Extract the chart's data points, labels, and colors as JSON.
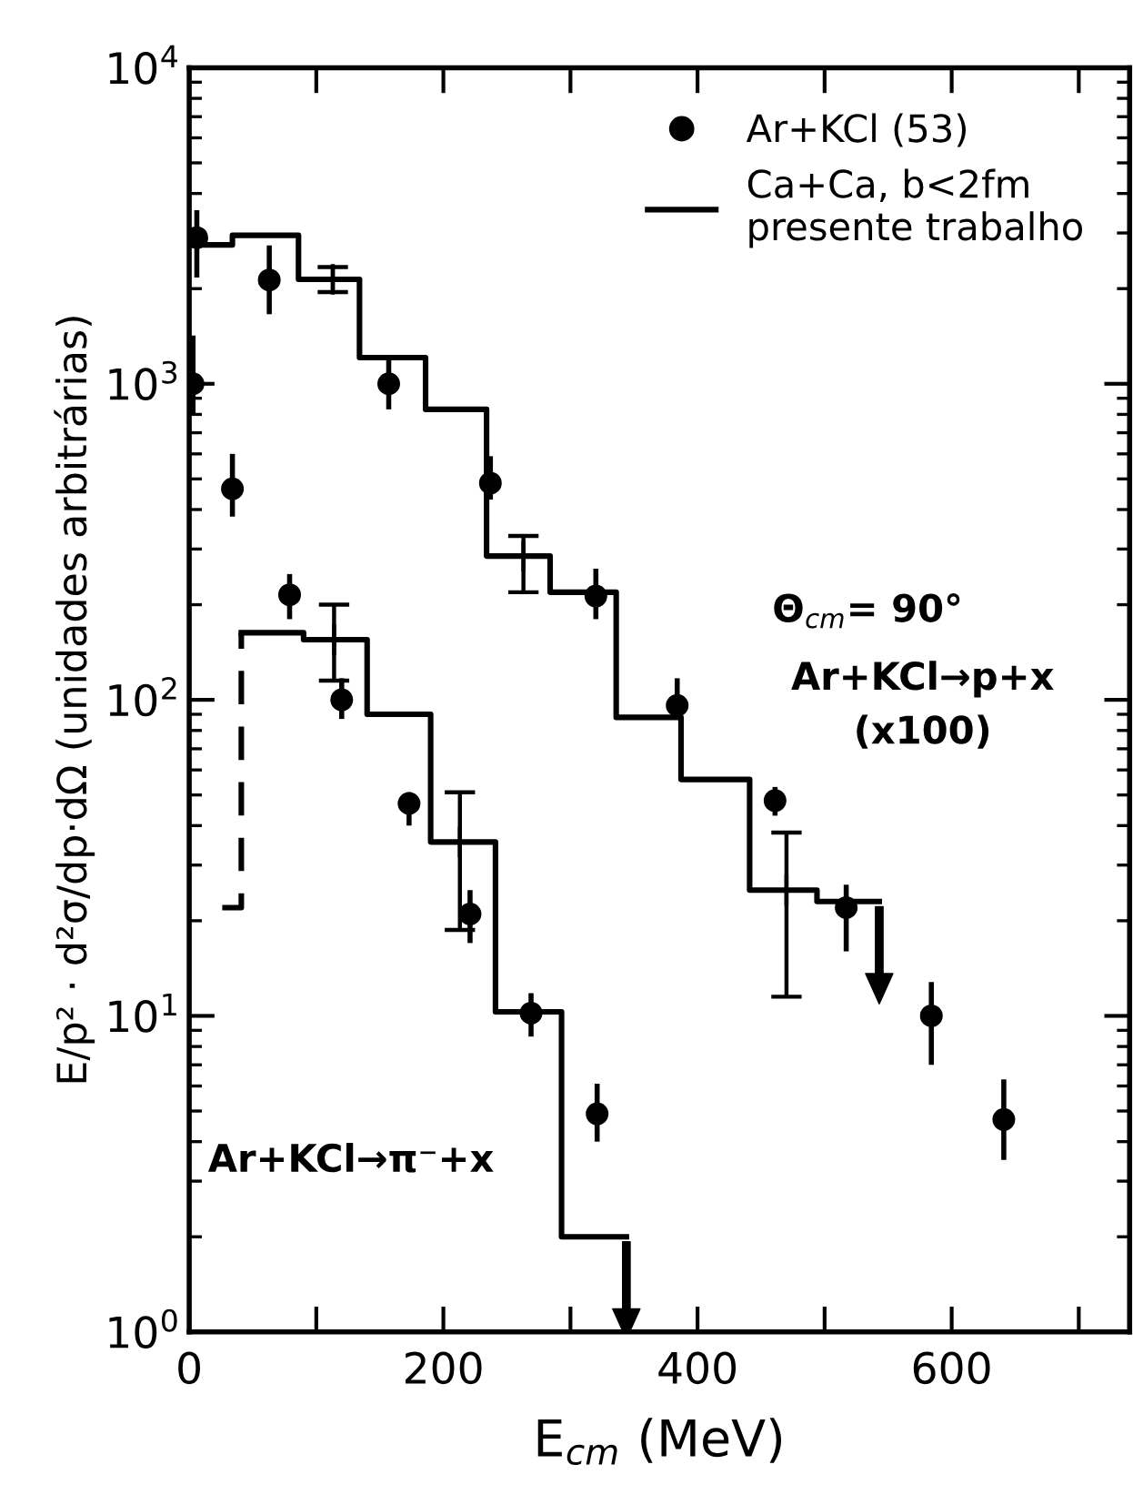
{
  "chart_data": {
    "type": "scatter",
    "xlabel": "E$_{cm}$ (MeV)",
    "ylabel": "E/p² · d²σ/dp·dΩ (unidades arbitrárias)",
    "log": "y",
    "xlim": [
      0,
      740
    ],
    "ylim": [
      1,
      10000
    ],
    "xticks": [
      0,
      {
        "value": 100,
        "label": null
      },
      200,
      {
        "value": 300,
        "label": null
      },
      400,
      {
        "value": 500,
        "label": null
      },
      600,
      {
        "value": 700,
        "label": null
      }
    ],
    "yticks": [
      {
        "value": 1,
        "label": "10$^{0}$"
      },
      {
        "value": 10,
        "label": "10$^{1}$"
      },
      {
        "value": 100,
        "label": "10$^{2}$"
      },
      {
        "value": 1000,
        "label": "10$^{3}$"
      },
      {
        "value": 10000,
        "label": "10$^{4}$"
      }
    ],
    "grid": false,
    "legend": "top right",
    "annotations": [
      "Θ$_{cm}$= 90°",
      "Ar+KCl→p+x\n(x100)",
      "Ar+KCl→π⁻+x"
    ],
    "series": [
      {
        "name": "Ar+KCl (53)",
        "type": "scatter",
        "color": "#000000",
        "marker": "circle",
        "x": [
          6,
          63,
          157,
          237,
          320,
          384,
          461,
          517,
          584,
          641,
          3,
          34,
          79,
          120,
          173,
          221,
          269,
          321
        ],
        "values": [
          2900,
          2130,
          1000,
          485,
          213,
          96,
          48,
          22,
          10,
          4.7,
          1000,
          465,
          215,
          100,
          47,
          21,
          10.2,
          4.9
        ],
        "errors": [
          [
            2170,
            3540
          ],
          [
            1660,
            2740
          ],
          [
            830,
            1200
          ],
          [
            430,
            590
          ],
          [
            180,
            260
          ],
          [
            87,
            117
          ],
          [
            43,
            53
          ],
          [
            16,
            26
          ],
          [
            7,
            12.8
          ],
          [
            3.5,
            6.3
          ],
          [
            800,
            1420
          ],
          [
            380,
            600
          ],
          [
            180,
            250
          ],
          [
            87,
            117
          ],
          [
            40,
            51
          ],
          [
            17,
            25
          ],
          [
            8.6,
            11.8
          ],
          [
            4.0,
            6.1
          ]
        ]
      },
      {
        "name": "Ca+Ca, b<2fm\npresente trabalho",
        "type": "step",
        "color": "#000000",
        "line_style": "solid",
        "x": [
          0,
          34,
          86,
          134,
          186,
          234,
          284,
          336,
          387,
          441,
          494,
          543
        ],
        "values": [
          2750,
          2950,
          2140,
          1210,
          830,
          285,
          219,
          88,
          56,
          25,
          23,
          23
        ]
      },
      {
        "type": "step",
        "color": "#000000",
        "line_style": "solid",
        "x": [
          41,
          90,
          140,
          190,
          241,
          293,
          344
        ],
        "values": [
          163,
          155,
          90,
          35.5,
          10.3,
          2.0,
          2.0
        ]
      },
      {
        "color": "#000000",
        "marker": "cross",
        "x": [
          113,
          263,
          470,
          114,
          213
        ],
        "values": [
          2140,
          285,
          25,
          155,
          35.5
        ],
        "errors": [
          [
            1950,
            2340
          ],
          [
            219,
            330
          ],
          [
            11.5,
            38
          ],
          [
            115,
            200
          ],
          [
            18.7,
            51
          ]
        ]
      },
      {
        "type": "step",
        "color": "#000000",
        "line_style": "dashed",
        "x": [
          26,
          41
        ],
        "values": [
          22,
          163
        ]
      }
    ]
  }
}
